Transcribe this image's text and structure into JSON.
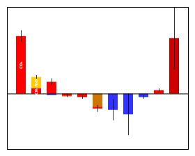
{
  "chart_data": {
    "type": "bar",
    "stacked": true,
    "tick_labels": false,
    "categories": [
      null,
      null,
      null,
      null,
      null,
      null,
      null,
      null,
      null,
      null,
      null
    ],
    "ylim": [
      -1.6,
      2.5
    ],
    "series": [
      {
        "values": [
          1.66,
          0.16,
          0.34,
          -0.05,
          -0.1,
          -0.38,
          -0.47,
          -0.6,
          -0.1,
          0.1,
          1.6
        ],
        "colors": [
          "#ff0000",
          "#ff0000",
          "#ff0000",
          "#ff0000",
          "#ff0000",
          "#cc7700",
          "#3333ff",
          "#3333ff",
          "#3333ff",
          "#ff0000",
          "#cc0000"
        ],
        "labels": [
          "CO₂",
          "CH₄",
          null,
          null,
          null,
          null,
          null,
          null,
          null,
          null,
          null
        ]
      },
      {
        "values": [
          null,
          0.32,
          -0.04,
          -0.03,
          null,
          -0.05,
          null,
          null,
          null,
          null,
          null
        ],
        "colors": [
          null,
          "#ffcc00",
          "#3333ff",
          "#ff4400",
          null,
          "#ff0000",
          null,
          null,
          null,
          null,
          null
        ],
        "labels": [
          null,
          "N₂O",
          null,
          null,
          null,
          null,
          null,
          null,
          null,
          null,
          null
        ]
      }
    ],
    "errors": {
      "y": [
        1.66,
        0.48,
        0.34,
        -0.05,
        -0.1,
        -0.43,
        -0.47,
        -0.6,
        -0.1,
        0.1,
        1.6
      ],
      "err": [
        0.17,
        0.05,
        0.1,
        0.05,
        0.05,
        0.1,
        0.3,
        0.6,
        0.05,
        0.05,
        0.9
      ]
    }
  }
}
